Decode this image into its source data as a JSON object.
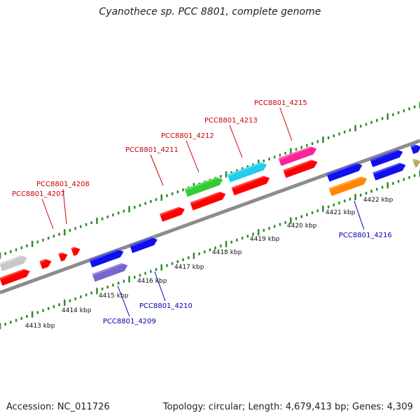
{
  "title": "Cyanothece sp. PCC 8801, complete genome",
  "footer": {
    "accession": "Accession: NC_011726",
    "summary": "Topology: circular; Length: 4,679,413 bp; Genes: 4,309"
  },
  "colors": {
    "strand_line": "#888888",
    "tick": "#2e8b2e",
    "label_forward": "#cc0000",
    "label_reverse": "#0000aa"
  },
  "kbp_labels": [
    "4413 kbp",
    "4414 kbp",
    "4415 kbp",
    "4416 kbp",
    "4417 kbp",
    "4418 kbp",
    "4419 kbp",
    "4420 kbp",
    "4421 kbp",
    "4422 kbp"
  ],
  "genes": [
    {
      "color": "#c8c8c8"
    },
    {
      "color": "#ff0000"
    },
    {
      "color": "#ff0000"
    },
    {
      "color": "#ff0000"
    },
    {
      "color": "#ff0000"
    },
    {
      "color": "#1010ee"
    },
    {
      "color": "#7766cc"
    },
    {
      "color": "#1010ee"
    },
    {
      "color": "#ff0000"
    },
    {
      "color": "#33cc33"
    },
    {
      "color": "#ff0000"
    },
    {
      "color": "#22ccee"
    },
    {
      "color": "#ff0000"
    },
    {
      "color": "#ff2299"
    },
    {
      "color": "#ff0000"
    },
    {
      "color": "#1010ee"
    },
    {
      "color": "#ff8800"
    },
    {
      "color": "#1010ee"
    },
    {
      "color": "#1010ee"
    },
    {
      "color": "#1010ee"
    },
    {
      "color": "#bbaa66"
    }
  ],
  "gene_labels": [
    {
      "text": "PCC8801_4207",
      "strand": "forward"
    },
    {
      "text": "PCC8801_4208",
      "strand": "forward"
    },
    {
      "text": "PCC8801_4211",
      "strand": "forward"
    },
    {
      "text": "PCC8801_4212",
      "strand": "forward"
    },
    {
      "text": "PCC8801_4213",
      "strand": "forward"
    },
    {
      "text": "PCC8801_4215",
      "strand": "forward"
    },
    {
      "text": "PCC8801_4209",
      "strand": "reverse"
    },
    {
      "text": "PCC8801_4210",
      "strand": "reverse"
    },
    {
      "text": "PCC8801_4216",
      "strand": "reverse"
    }
  ]
}
